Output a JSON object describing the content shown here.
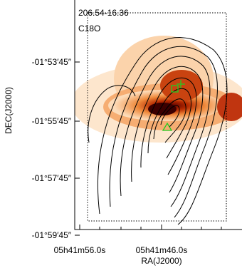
{
  "plot": {
    "source": "206.54-16.36",
    "tracer": "C18O",
    "x_label": "RA(J2000)",
    "y_label": "DEC(J2000)",
    "x_ticks": [
      "05h41m56.0s",
      "05h41m46.0s"
    ],
    "y_ticks": [
      "-01°53′45″",
      "-01°55′45″",
      "-01°57′45″",
      "-01°59′45″"
    ]
  }
}
